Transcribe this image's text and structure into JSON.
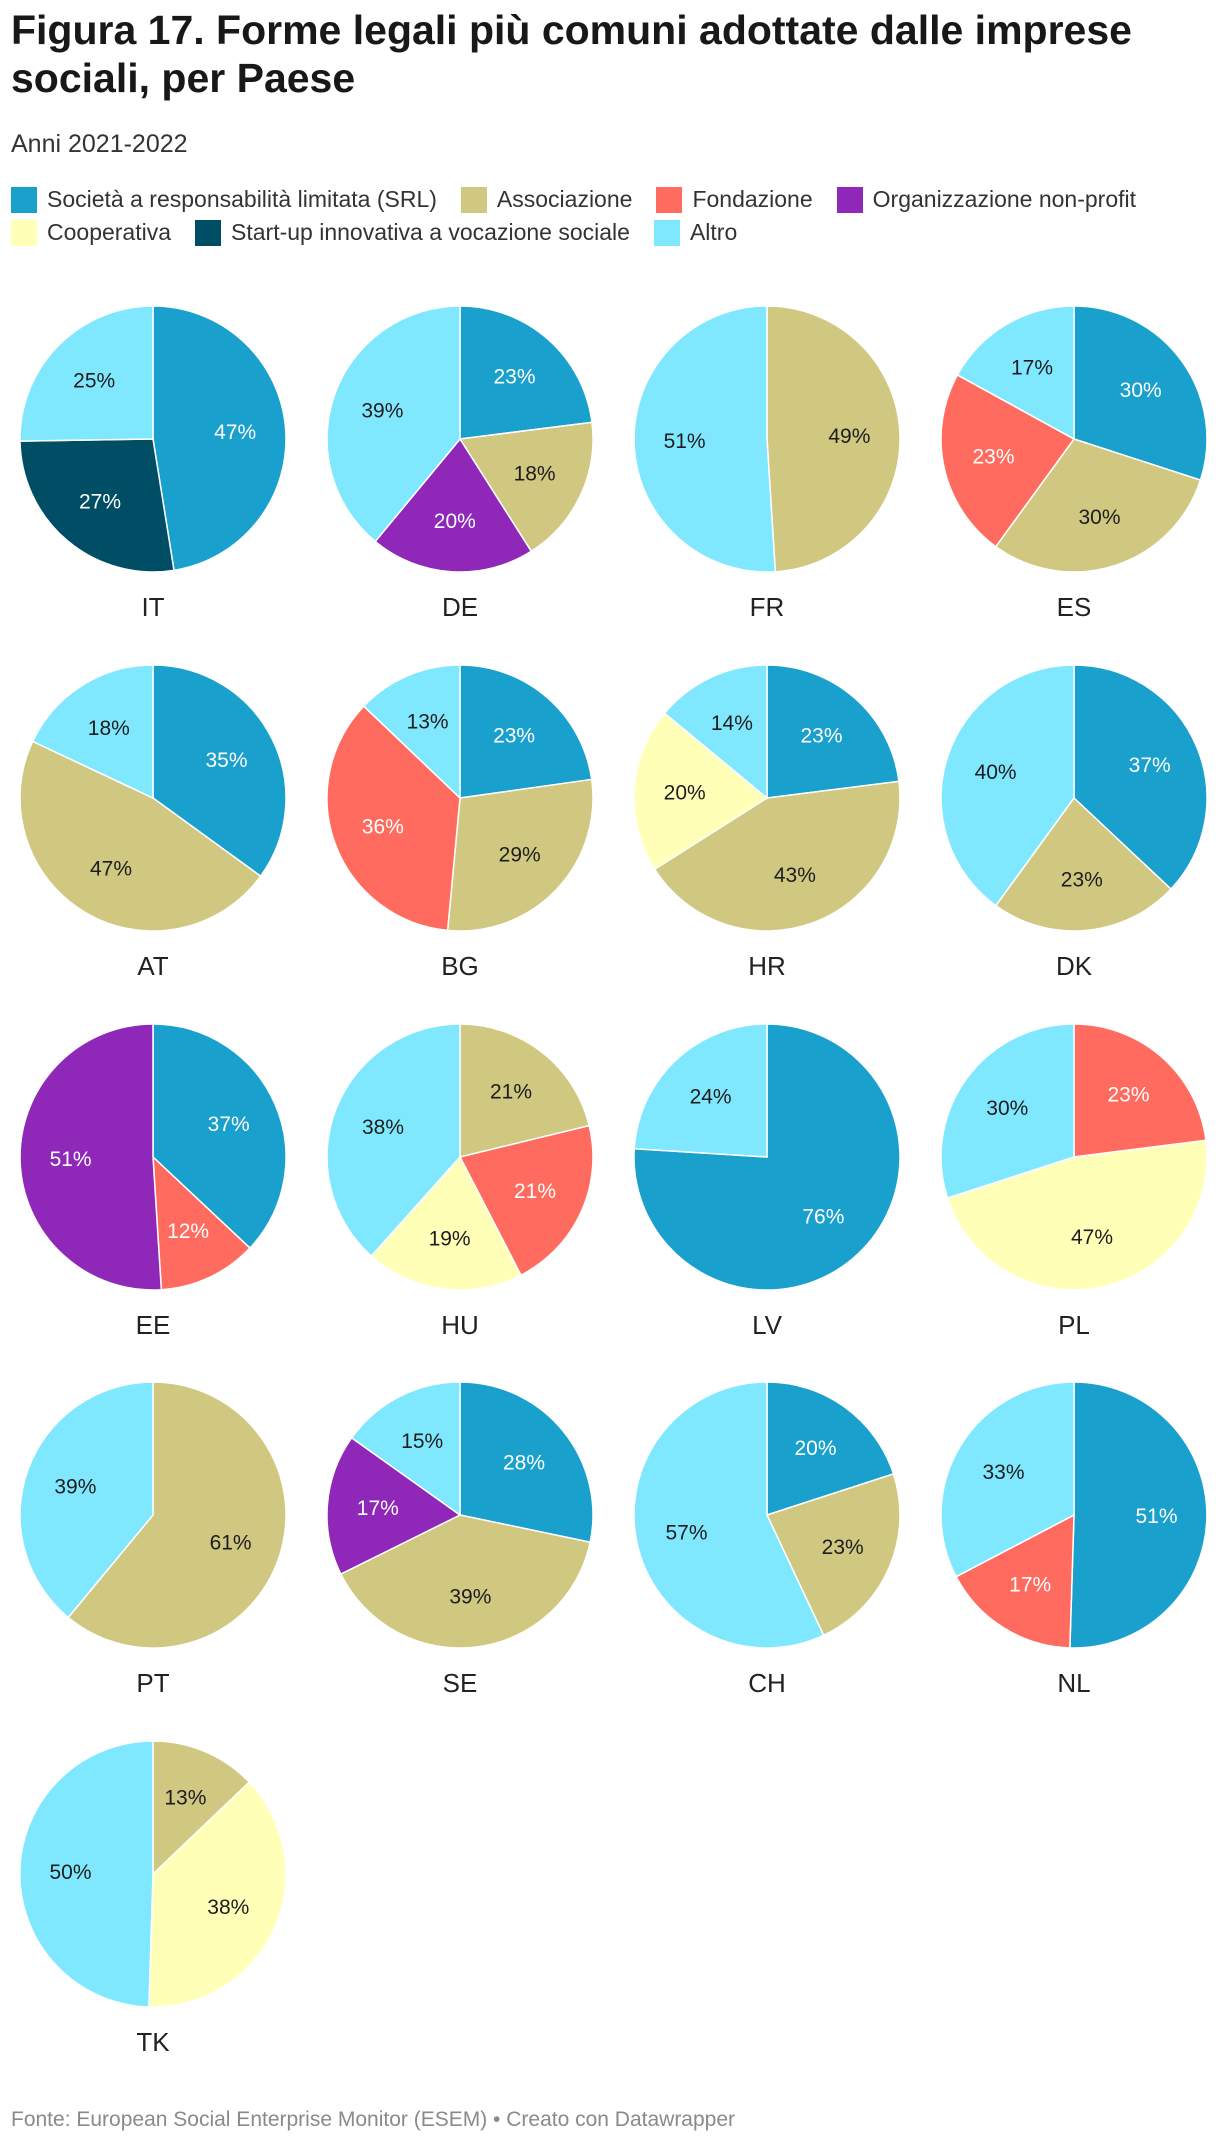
{
  "title": "Figura 17. Forme legali più comuni adottate dalle imprese sociali, per Paese",
  "subtitle": "Anni 2021-2022",
  "source": "Fonte: European Social Enterprise Monitor (ESEM) • Creato con Datawrapper",
  "legend": [
    {
      "key": "srl",
      "label": "Società a responsabilità limitata (SRL)",
      "color": "#19a0cc"
    },
    {
      "key": "assoc",
      "label": "Associazione",
      "color": "#d0c780"
    },
    {
      "key": "fond",
      "label": "Fondazione",
      "color": "#ff6b5f"
    },
    {
      "key": "nonprofit",
      "label": "Organizzazione non-profit",
      "color": "#8f27b9"
    },
    {
      "key": "coop",
      "label": "Cooperativa",
      "color": "#ffffb8"
    },
    {
      "key": "startup",
      "label": "Start-up innovativa a vocazione sociale",
      "color": "#004e66"
    },
    {
      "key": "altro",
      "label": "Altro",
      "color": "#7fe8ff"
    }
  ],
  "chart_data": {
    "type": "pie",
    "title": "Figura 17. Forme legali più comuni adottate dalle imprese sociali, per Paese",
    "unit": "%",
    "charts": [
      {
        "country": "IT",
        "slices": [
          {
            "key": "srl",
            "value": 47
          },
          {
            "key": "startup",
            "value": 27
          },
          {
            "key": "altro",
            "value": 25
          }
        ]
      },
      {
        "country": "DE",
        "slices": [
          {
            "key": "srl",
            "value": 23
          },
          {
            "key": "assoc",
            "value": 18
          },
          {
            "key": "nonprofit",
            "value": 20
          },
          {
            "key": "altro",
            "value": 39
          }
        ]
      },
      {
        "country": "FR",
        "slices": [
          {
            "key": "assoc",
            "value": 49
          },
          {
            "key": "altro",
            "value": 51
          }
        ]
      },
      {
        "country": "ES",
        "slices": [
          {
            "key": "srl",
            "value": 30
          },
          {
            "key": "assoc",
            "value": 30
          },
          {
            "key": "fond",
            "value": 23
          },
          {
            "key": "altro",
            "value": 17
          }
        ]
      },
      {
        "country": "AT",
        "slices": [
          {
            "key": "srl",
            "value": 35
          },
          {
            "key": "assoc",
            "value": 47
          },
          {
            "key": "altro",
            "value": 18
          }
        ]
      },
      {
        "country": "BG",
        "slices": [
          {
            "key": "srl",
            "value": 23
          },
          {
            "key": "assoc",
            "value": 29
          },
          {
            "key": "fond",
            "value": 36
          },
          {
            "key": "altro",
            "value": 13
          }
        ]
      },
      {
        "country": "HR",
        "slices": [
          {
            "key": "srl",
            "value": 23
          },
          {
            "key": "assoc",
            "value": 43
          },
          {
            "key": "coop",
            "value": 20
          },
          {
            "key": "altro",
            "value": 14
          }
        ]
      },
      {
        "country": "DK",
        "slices": [
          {
            "key": "srl",
            "value": 37
          },
          {
            "key": "assoc",
            "value": 23
          },
          {
            "key": "altro",
            "value": 40
          }
        ]
      },
      {
        "country": "EE",
        "slices": [
          {
            "key": "srl",
            "value": 37
          },
          {
            "key": "fond",
            "value": 12
          },
          {
            "key": "nonprofit",
            "value": 51
          }
        ]
      },
      {
        "country": "HU",
        "slices": [
          {
            "key": "assoc",
            "value": 21
          },
          {
            "key": "fond",
            "value": 21
          },
          {
            "key": "coop",
            "value": 19
          },
          {
            "key": "altro",
            "value": 38
          }
        ]
      },
      {
        "country": "LV",
        "slices": [
          {
            "key": "srl",
            "value": 76
          },
          {
            "key": "altro",
            "value": 24
          }
        ]
      },
      {
        "country": "PL",
        "slices": [
          {
            "key": "fond",
            "value": 23
          },
          {
            "key": "coop",
            "value": 47
          },
          {
            "key": "altro",
            "value": 30
          }
        ]
      },
      {
        "country": "PT",
        "slices": [
          {
            "key": "assoc",
            "value": 61
          },
          {
            "key": "altro",
            "value": 39
          }
        ]
      },
      {
        "country": "SE",
        "slices": [
          {
            "key": "srl",
            "value": 28
          },
          {
            "key": "assoc",
            "value": 39
          },
          {
            "key": "nonprofit",
            "value": 17
          },
          {
            "key": "altro",
            "value": 15
          }
        ]
      },
      {
        "country": "CH",
        "slices": [
          {
            "key": "srl",
            "value": 20
          },
          {
            "key": "assoc",
            "value": 23
          },
          {
            "key": "altro",
            "value": 57
          }
        ]
      },
      {
        "country": "NL",
        "slices": [
          {
            "key": "srl",
            "value": 51
          },
          {
            "key": "fond",
            "value": 17
          },
          {
            "key": "altro",
            "value": 33
          }
        ]
      },
      {
        "country": "TK",
        "slices": [
          {
            "key": "assoc",
            "value": 13
          },
          {
            "key": "coop",
            "value": 38
          },
          {
            "key": "altro",
            "value": 50
          }
        ]
      }
    ]
  }
}
